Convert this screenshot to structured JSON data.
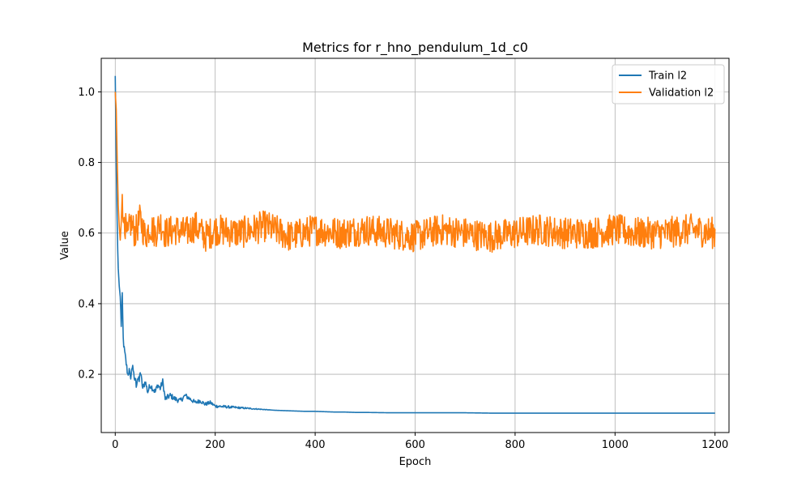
{
  "chart_data": {
    "type": "line",
    "title": "Metrics for r_hno_pendulum_1d_c0",
    "xlabel": "Epoch",
    "ylabel": "Value",
    "xlim": [
      -28,
      1228
    ],
    "ylim": [
      0.035,
      1.095
    ],
    "xticks": [
      0,
      200,
      400,
      600,
      800,
      1000,
      1200
    ],
    "yticks": [
      0.2,
      0.4,
      0.6,
      0.8,
      1.0
    ],
    "grid": true,
    "legend_position": "top-right",
    "series": [
      {
        "name": "Train l2",
        "color": "#1f77b4",
        "x": [
          0,
          1,
          2,
          3,
          4,
          5,
          6,
          8,
          10,
          12,
          14,
          16,
          18,
          20,
          22,
          25,
          28,
          30,
          32,
          35,
          38,
          40,
          42,
          45,
          48,
          50,
          55,
          60,
          65,
          70,
          75,
          80,
          85,
          90,
          95,
          100,
          110,
          120,
          130,
          140,
          150,
          160,
          170,
          180,
          190,
          200,
          220,
          240,
          260,
          280,
          300,
          320,
          340,
          360,
          380,
          400,
          420,
          440,
          460,
          480,
          500,
          550,
          600,
          650,
          700,
          750,
          800,
          850,
          900,
          950,
          1000,
          1050,
          1100,
          1150,
          1200
        ],
        "y": [
          1.045,
          0.93,
          0.8,
          0.7,
          0.62,
          0.55,
          0.5,
          0.45,
          0.42,
          0.34,
          0.42,
          0.3,
          0.27,
          0.25,
          0.23,
          0.2,
          0.21,
          0.19,
          0.2,
          0.23,
          0.18,
          0.19,
          0.17,
          0.19,
          0.18,
          0.21,
          0.16,
          0.18,
          0.15,
          0.17,
          0.16,
          0.15,
          0.17,
          0.16,
          0.18,
          0.13,
          0.14,
          0.13,
          0.125,
          0.14,
          0.13,
          0.12,
          0.125,
          0.115,
          0.12,
          0.11,
          0.108,
          0.106,
          0.104,
          0.102,
          0.1,
          0.098,
          0.097,
          0.096,
          0.095,
          0.095,
          0.094,
          0.093,
          0.093,
          0.092,
          0.092,
          0.091,
          0.091,
          0.091,
          0.091,
          0.09,
          0.09,
          0.09,
          0.09,
          0.09,
          0.09,
          0.09,
          0.09,
          0.09,
          0.09
        ]
      },
      {
        "name": "Validation l2",
        "color": "#ff7f0e",
        "x": [
          0,
          2,
          4,
          6,
          8,
          10,
          12,
          14,
          16,
          18,
          20,
          25,
          30,
          40,
          50,
          60,
          70,
          80,
          90,
          100,
          120,
          140,
          160,
          180,
          200,
          250,
          300,
          350,
          400,
          450,
          500,
          550,
          600,
          650,
          700,
          750,
          800,
          850,
          900,
          950,
          1000,
          1040,
          1100,
          1150,
          1200
        ],
        "y": [
          1.0,
          0.95,
          0.8,
          0.68,
          0.62,
          0.58,
          0.63,
          0.75,
          0.6,
          0.66,
          0.62,
          0.58,
          0.63,
          0.6,
          0.64,
          0.59,
          0.62,
          0.6,
          0.63,
          0.6,
          0.61,
          0.6,
          0.62,
          0.59,
          0.61,
          0.6,
          0.62,
          0.59,
          0.61,
          0.6,
          0.61,
          0.6,
          0.59,
          0.61,
          0.6,
          0.59,
          0.6,
          0.61,
          0.6,
          0.6,
          0.61,
          0.6,
          0.6,
          0.61,
          0.6
        ],
        "noise_amplitude": 0.045
      }
    ]
  }
}
